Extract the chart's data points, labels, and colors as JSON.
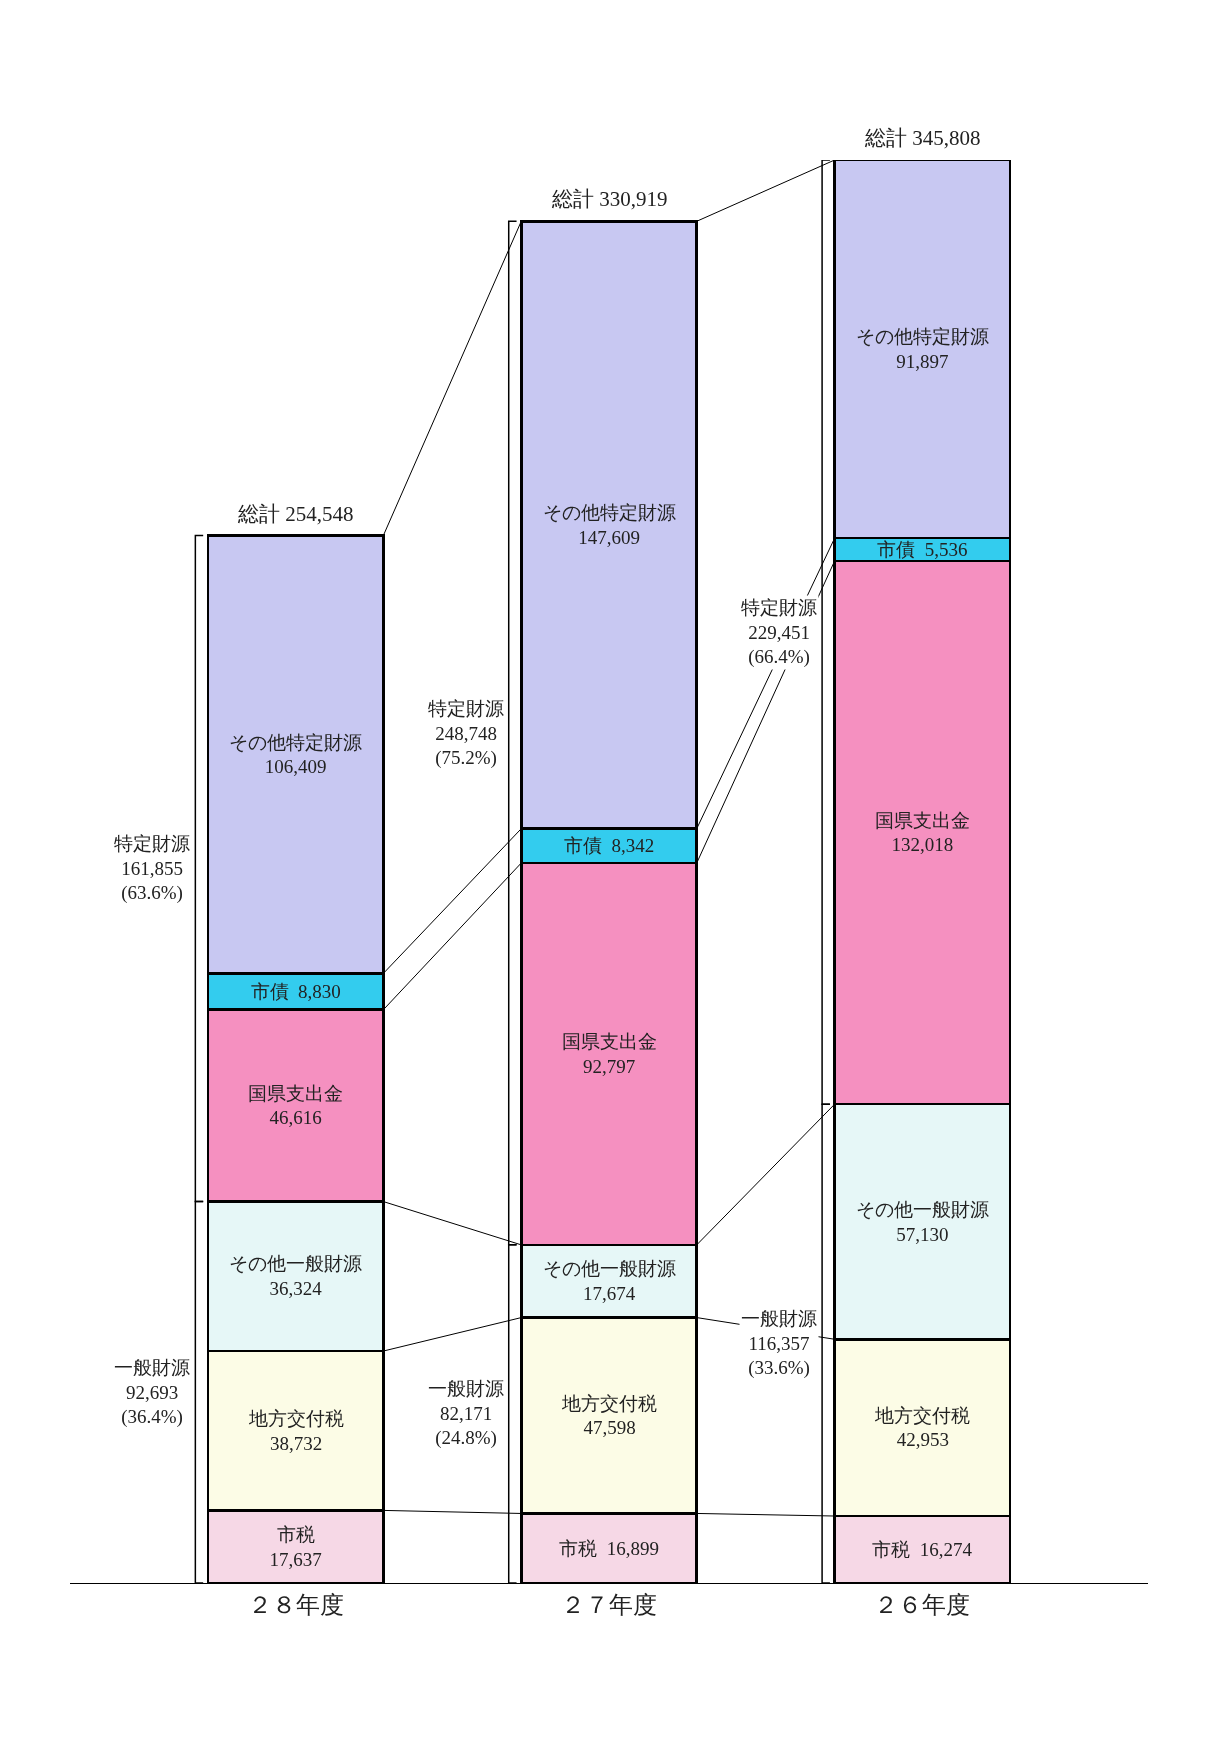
{
  "chart_data": {
    "type": "bar",
    "stacked": true,
    "legend": false,
    "categories": [
      "２８年度",
      "２７年度",
      "２６年度"
    ],
    "series": [
      {
        "name": "市税",
        "color": "#f6d8e6",
        "values": [
          17637,
          16899,
          16274
        ],
        "value_labels": [
          "17,637",
          "16,899",
          "16,274"
        ]
      },
      {
        "name": "地方交付税",
        "color": "#fcfce6",
        "values": [
          38732,
          47598,
          42953
        ],
        "value_labels": [
          "38,732",
          "47,598",
          "42,953"
        ]
      },
      {
        "name": "その他一般財源",
        "color": "#e6f7f7",
        "values": [
          36324,
          17674,
          57130
        ],
        "value_labels": [
          "36,324",
          "17,674",
          "57,130"
        ]
      },
      {
        "name": "国県支出金",
        "color": "#f590c0",
        "values": [
          46616,
          92797,
          132018
        ],
        "value_labels": [
          "46,616",
          "92,797",
          "132,018"
        ]
      },
      {
        "name": "市債",
        "color": "#33ccee",
        "values": [
          8830,
          8342,
          5536
        ],
        "value_labels": [
          "8,830",
          "8,342",
          "5,536"
        ]
      },
      {
        "name": "その他特定財源",
        "color": "#c8c8f2",
        "values": [
          106409,
          147609,
          91897
        ],
        "value_labels": [
          "106,409",
          "147,609",
          "91,897"
        ]
      }
    ],
    "totals": [
      "総計 254,548",
      "総計 330,919",
      "総計 345,808"
    ],
    "annotations": [
      "特定財源\n161,855\n(63.6%)",
      "一般財源\n92,693\n(36.4%)",
      "特定財源\n248,748\n(75.2%)",
      "一般財源\n82,171\n(24.8%)",
      "特定財源\n229,451\n(66.4%)",
      "一般財源\n116,357\n(33.6%)"
    ]
  }
}
